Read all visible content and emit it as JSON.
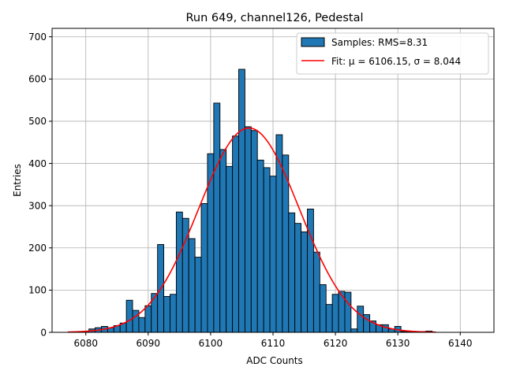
{
  "chart_data": {
    "type": "bar",
    "title": "Run 649, channel126, Pedestal",
    "xlabel": "ADC Counts",
    "ylabel": "Entries",
    "xlim": [
      6074.6,
      6145.4
    ],
    "ylim": [
      0,
      720
    ],
    "xticks": [
      6080,
      6090,
      6100,
      6110,
      6120,
      6130,
      6140
    ],
    "yticks": [
      0,
      100,
      200,
      300,
      400,
      500,
      600,
      700
    ],
    "grid": true,
    "legend_position": "top-right",
    "bin_width": 1,
    "bins": {
      "x": [
        6080,
        6081,
        6082,
        6083,
        6084,
        6085,
        6086,
        6087,
        6088,
        6089,
        6090,
        6091,
        6092,
        6093,
        6094,
        6095,
        6096,
        6097,
        6098,
        6099,
        6100,
        6101,
        6102,
        6103,
        6104,
        6105,
        6106,
        6107,
        6108,
        6109,
        6110,
        6111,
        6112,
        6113,
        6114,
        6115,
        6116,
        6117,
        6118,
        6119,
        6120,
        6121,
        6122,
        6123,
        6124,
        6125,
        6126,
        6127,
        6128,
        6129,
        6130,
        6131,
        6132,
        6133,
        6134,
        6135
      ],
      "values": [
        2,
        8,
        11,
        14,
        11,
        16,
        22,
        76,
        52,
        35,
        63,
        92,
        208,
        85,
        90,
        285,
        270,
        222,
        178,
        305,
        423,
        543,
        433,
        393,
        465,
        623,
        487,
        478,
        408,
        390,
        370,
        468,
        420,
        283,
        258,
        238,
        292,
        190,
        113,
        66,
        90,
        97,
        95,
        8,
        62,
        42,
        27,
        18,
        18,
        8,
        14,
        2,
        2,
        0,
        2,
        3
      ]
    },
    "series": [
      {
        "name": "Samples: RMS=8.31",
        "kind": "histogram",
        "color": "#1f77b4",
        "edge": "#000000"
      },
      {
        "name": "Fit: μ = 6106.15, σ = 8.044",
        "kind": "gaussian",
        "color": "#ff0000",
        "mu": 6106.15,
        "sigma": 8.044,
        "peak": 484,
        "x_range": [
          6077.1,
          6136.1
        ]
      }
    ]
  }
}
